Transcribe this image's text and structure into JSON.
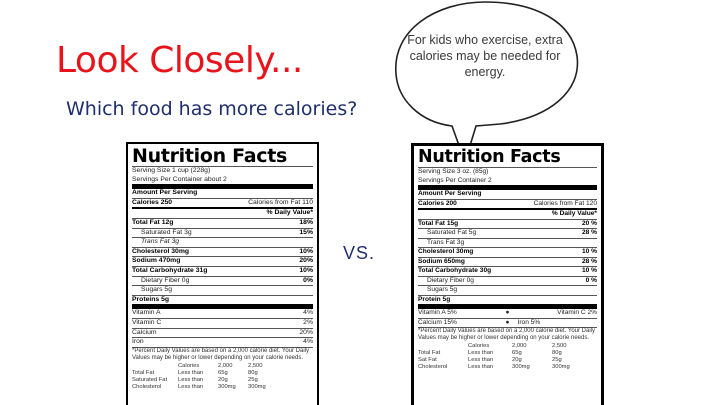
{
  "slide": {
    "title": "Look Closely...",
    "subtitle": "Which food has more calories?",
    "callout": "For kids who exercise, extra calories may be needed for energy.",
    "vs": "VS.",
    "colors": {
      "title": "#e8141b",
      "subtitle": "#1f2f6d"
    }
  },
  "label_a": {
    "title": "Nutrition Facts",
    "serving_size": "Serving Size 1 cup (228g)",
    "servings": "Servings Per Container about 2",
    "amount_per_serving": "Amount Per Serving",
    "calories": "Calories 250",
    "calories_fat": "Calories from Fat 110",
    "daily_value_header": "% Daily Value*",
    "nutrients": [
      {
        "name": "Total Fat 12g",
        "dv": "18%"
      },
      {
        "name": "Saturated Fat 3g",
        "dv": "15%"
      },
      {
        "name": "Trans Fat 3g",
        "dv": ""
      },
      {
        "name": "Cholesterol 30mg",
        "dv": "10%"
      },
      {
        "name": "Sodium 470mg",
        "dv": "20%"
      },
      {
        "name": "Total Carbohydrate 31g",
        "dv": "10%"
      },
      {
        "name": "Dietary Fiber 0g",
        "dv": "0%"
      },
      {
        "name": "Sugars 5g",
        "dv": ""
      },
      {
        "name": "Proteins 5g",
        "dv": ""
      }
    ],
    "vitamins": [
      {
        "name": "Vitamin A",
        "dv": "4%"
      },
      {
        "name": "Vitamin C",
        "dv": "2%"
      },
      {
        "name": "Calcium",
        "dv": "20%"
      },
      {
        "name": "Iron",
        "dv": "4%"
      }
    ],
    "footnote": "*Percent Daily Values are based on a 2,000 calorie diet. Your Daily Values may be higher or lower depending on your calorie needs.",
    "table_header": [
      "",
      "Calories",
      "2,000",
      "2,500"
    ],
    "table_rows": [
      [
        "Total Fat",
        "Less than",
        "65g",
        "80g"
      ],
      [
        "Saturated Fat",
        "Less than",
        "20g",
        "25g"
      ],
      [
        "Cholesterol",
        "Less than",
        "300mg",
        "300mg"
      ]
    ]
  },
  "label_b": {
    "title": "Nutrition Facts",
    "serving_size": "Serving Size 3 oz. (85g)",
    "servings": "Servings Per Container 2",
    "amount_per_serving": "Amount Per Serving",
    "calories": "Calories 200",
    "calories_fat": "Calories from Fat 120",
    "daily_value_header": "% Daily Value*",
    "nutrients": [
      {
        "name": "Total Fat 15g",
        "dv": "20 %"
      },
      {
        "name": "Saturated Fat 5g",
        "dv": "28 %"
      },
      {
        "name": "Trans Fat 3g",
        "dv": ""
      },
      {
        "name": "Cholesterol 30mg",
        "dv": "10 %"
      },
      {
        "name": "Sodium 650mg",
        "dv": "28 %"
      },
      {
        "name": "Total Carbohydrate 30g",
        "dv": "10 %"
      },
      {
        "name": "Dietary Fiber 0g",
        "dv": "0 %"
      },
      {
        "name": "Sugars 5g",
        "dv": ""
      },
      {
        "name": "Protein 5g",
        "dv": ""
      }
    ],
    "vitamins_row1": [
      "Vitamin A 5%",
      "Vitamin C 2%"
    ],
    "vitamins_row2": [
      "Calcium 15%",
      "Iron 5%"
    ],
    "footnote": "*Percent Daily Values are based on a 2,000 calorie diet. Your Daily Values may be higher or lower depending on your calorie needs.",
    "table_header": [
      "",
      "Calories",
      "2,000",
      "2,500"
    ],
    "table_rows": [
      [
        "Total Fat",
        "Less than",
        "65g",
        "80g"
      ],
      [
        "Sat Fat",
        "Less than",
        "20g",
        "25g"
      ],
      [
        "Cholesterol",
        "Less than",
        "300mg",
        "300mg"
      ]
    ]
  }
}
